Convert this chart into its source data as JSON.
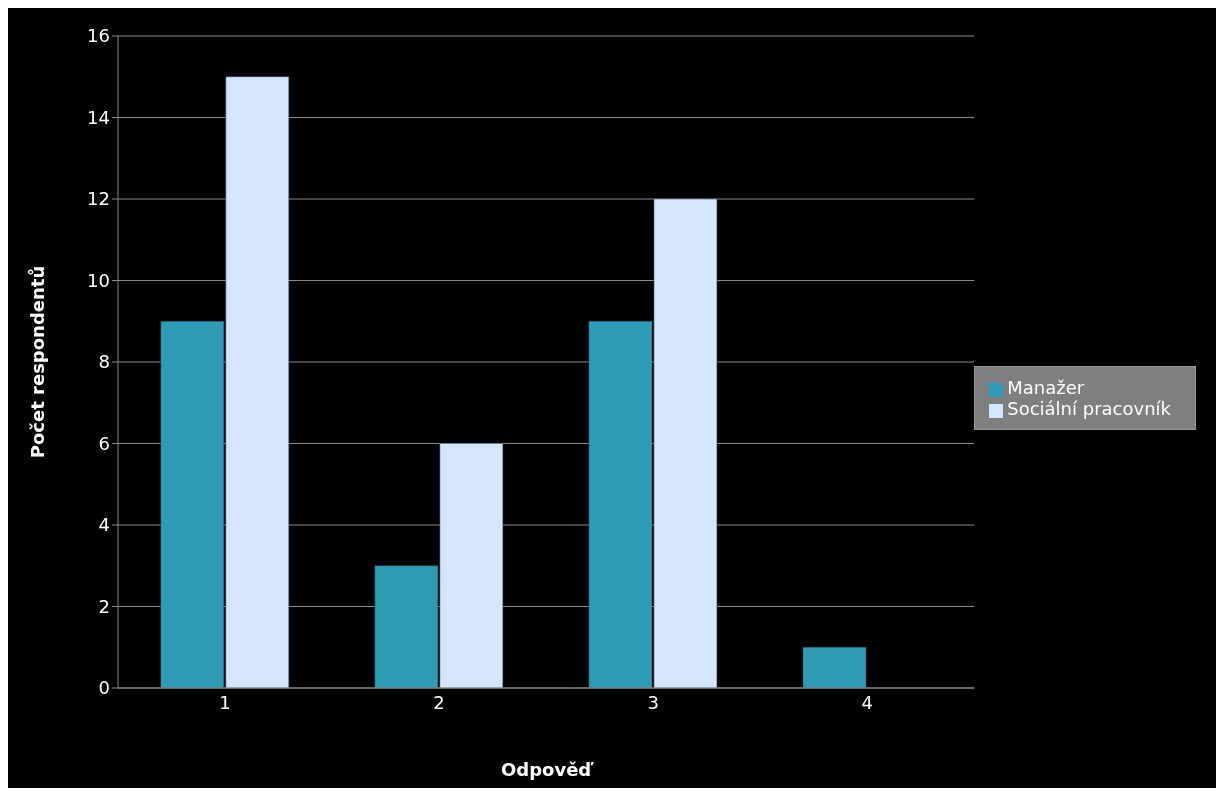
{
  "chart_data": {
    "type": "bar",
    "xlabel": "Odpověď",
    "ylabel": "Počet respondentů",
    "categories": [
      "1",
      "2",
      "3",
      "4"
    ],
    "series": [
      {
        "name": "Manažer",
        "color": "#2f9cb6",
        "values": [
          9,
          3,
          9,
          1
        ]
      },
      {
        "name": "Sociální pracovník",
        "color": "#d5e5fb",
        "values": [
          15,
          6,
          12,
          null
        ]
      }
    ],
    "ylim": [
      0,
      16
    ],
    "yticks": [
      0,
      2,
      4,
      6,
      8,
      10,
      12,
      14,
      16
    ],
    "grid": "y",
    "legend": "right"
  }
}
